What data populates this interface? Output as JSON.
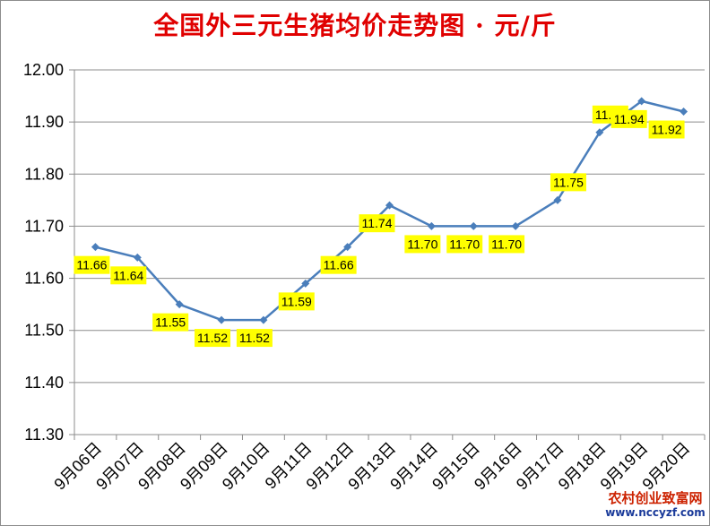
{
  "chart_data": {
    "type": "line",
    "title": "全国外三元生猪均价走势图 · 元/斤",
    "categories": [
      "9月06日",
      "9月07日",
      "9月08日",
      "9月09日",
      "9月10日",
      "9月11日",
      "9月12日",
      "9月13日",
      "9月14日",
      "9月15日",
      "9月16日",
      "9月17日",
      "9月18日",
      "9月19日",
      "9月20日"
    ],
    "values": [
      11.66,
      11.64,
      11.55,
      11.52,
      11.52,
      11.59,
      11.66,
      11.74,
      11.7,
      11.7,
      11.7,
      11.75,
      11.88,
      11.94,
      11.92
    ],
    "data_labels": [
      "11.66",
      "11.64",
      "11.55",
      "11.52",
      "11.52",
      "11.59",
      "11.66",
      "11.74",
      "11.70",
      "11.70",
      "11.70",
      "11.75",
      "11.88",
      "11.94",
      "11.92"
    ],
    "yticks": [
      "11.30",
      "11.40",
      "11.50",
      "11.60",
      "11.70",
      "11.80",
      "11.90",
      "12.00"
    ],
    "ylim": [
      11.3,
      12.0
    ],
    "ytick_step": 0.1,
    "grid": true,
    "legend": "none",
    "line_color": "#4a7ebb",
    "label_bg_color": "#ffff00",
    "xlabel": "",
    "ylabel": ""
  },
  "watermark": {
    "line1": "农村创业致富网",
    "line2": "www.nccyzf.com"
  }
}
